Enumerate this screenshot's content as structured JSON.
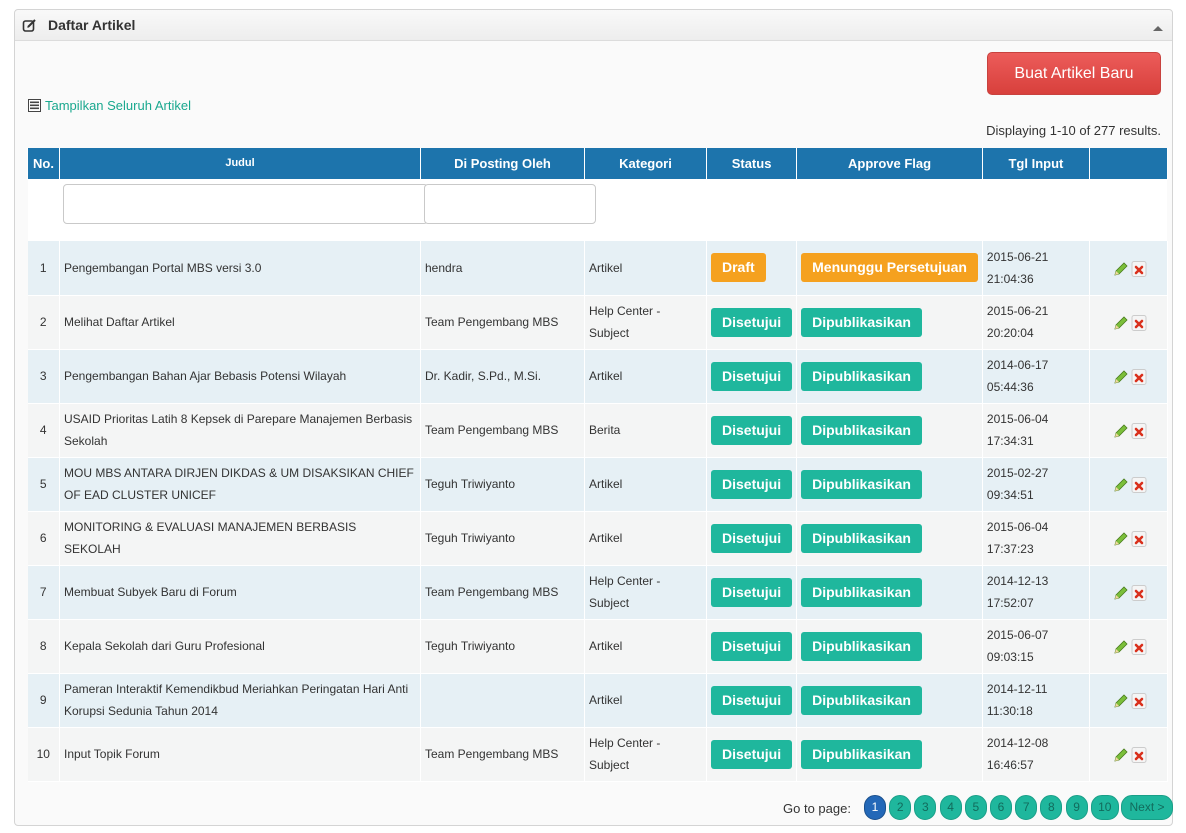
{
  "panel": {
    "title": "Daftar Artikel"
  },
  "toolbar": {
    "new_label": "Buat Artikel Baru",
    "show_all_label": "Tampilkan Seluruh Artikel",
    "summary": "Displaying 1-10 of 277 results."
  },
  "table": {
    "headers": {
      "no": "No.",
      "judul": "Judul",
      "oleh": "Di Posting Oleh",
      "kategori": "Kategori",
      "status": "Status",
      "approve": "Approve Flag",
      "tgl": "Tgl Input"
    },
    "filters": {
      "judul_value": "",
      "oleh_value": ""
    },
    "rows": [
      {
        "no": "1",
        "judul": "Pengembangan Portal MBS versi 3.0",
        "oleh": "hendra",
        "kategori": "Artikel",
        "status": "Draft",
        "approve": "Menunggu Persetujuan",
        "tgl_date": "2015-06-21",
        "tgl_time": "21:04:36"
      },
      {
        "no": "2",
        "judul": "Melihat Daftar Artikel",
        "oleh": "Team Pengembang MBS",
        "kategori": "Help Center - Subject",
        "status": "Disetujui",
        "approve": "Dipublikasikan",
        "tgl_date": "2015-06-21",
        "tgl_time": "20:20:04"
      },
      {
        "no": "3",
        "judul": "Pengembangan Bahan Ajar Bebasis Potensi Wilayah",
        "oleh": "Dr. Kadir, S.Pd., M.Si.",
        "kategori": "Artikel",
        "status": "Disetujui",
        "approve": "Dipublikasikan",
        "tgl_date": "2014-06-17",
        "tgl_time": "05:44:36"
      },
      {
        "no": "4",
        "judul": "USAID Prioritas Latih 8 Kepsek di Parepare Manajemen Berbasis Sekolah",
        "oleh": "Team Pengembang MBS",
        "kategori": "Berita",
        "status": "Disetujui",
        "approve": "Dipublikasikan",
        "tgl_date": "2015-06-04",
        "tgl_time": "17:34:31"
      },
      {
        "no": "5",
        "judul": "MOU MBS ANTARA DIRJEN DIKDAS & UM DISAKSIKAN CHIEF OF EAD CLUSTER UNICEF",
        "oleh": "Teguh Triwiyanto",
        "kategori": "Artikel",
        "status": "Disetujui",
        "approve": "Dipublikasikan",
        "tgl_date": "2015-02-27",
        "tgl_time": "09:34:51"
      },
      {
        "no": "6",
        "judul": "MONITORING & EVALUASI MANAJEMEN BERBASIS SEKOLAH",
        "oleh": "Teguh Triwiyanto",
        "kategori": "Artikel",
        "status": "Disetujui",
        "approve": "Dipublikasikan",
        "tgl_date": "2015-06-04",
        "tgl_time": "17:37:23"
      },
      {
        "no": "7",
        "judul": "Membuat Subyek Baru di Forum",
        "oleh": "Team Pengembang MBS",
        "kategori": "Help Center - Subject",
        "status": "Disetujui",
        "approve": "Dipublikasikan",
        "tgl_date": "2014-12-13",
        "tgl_time": "17:52:07"
      },
      {
        "no": "8",
        "judul": "Kepala Sekolah dari Guru Profesional",
        "oleh": "Teguh Triwiyanto",
        "kategori": "Artikel",
        "status": "Disetujui",
        "approve": "Dipublikasikan",
        "tgl_date": "2015-06-07",
        "tgl_time": "09:03:15"
      },
      {
        "no": "9",
        "judul": "Pameran Interaktif Kemendikbud Meriahkan Peringatan Hari Anti Korupsi Sedunia Tahun 2014",
        "oleh": "",
        "kategori": "Artikel",
        "status": "Disetujui",
        "approve": "Dipublikasikan",
        "tgl_date": "2014-12-11",
        "tgl_time": "11:30:18"
      },
      {
        "no": "10",
        "judul": "Input Topik Forum",
        "oleh": "Team Pengembang MBS",
        "kategori": "Help Center - Subject",
        "status": "Disetujui",
        "approve": "Dipublikasikan",
        "tgl_date": "2014-12-08",
        "tgl_time": "16:46:57"
      }
    ]
  },
  "pager": {
    "label": "Go to page:",
    "pages": [
      "1",
      "2",
      "3",
      "4",
      "5",
      "6",
      "7",
      "8",
      "9",
      "10"
    ],
    "current": "1",
    "next_label": "Next >"
  },
  "colors": {
    "header_bg": "#1d74ac",
    "primary_button": "#d8403c",
    "badge_orange": "#f5a11f",
    "badge_teal": "#1fb79d",
    "link": "#1aa88f",
    "category_artikel": "#2a7d1a",
    "category_berita": "#d21c1c"
  },
  "icons": {
    "panel": "edit-square-icon",
    "collapse": "chevron-up-icon",
    "show_all": "list-icon",
    "edit": "pencil-icon",
    "delete": "delete-x-icon"
  }
}
